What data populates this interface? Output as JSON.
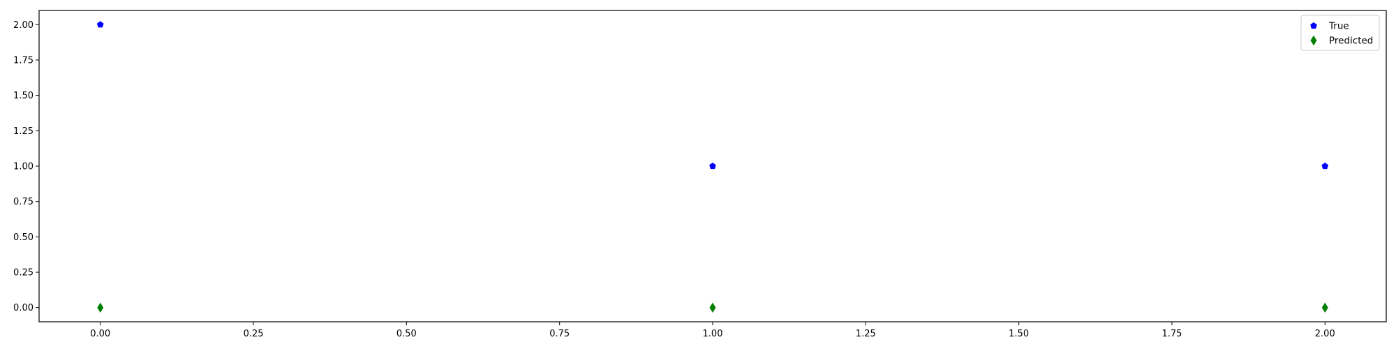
{
  "chart_data": {
    "type": "scatter",
    "title": "",
    "xlabel": "",
    "ylabel": "",
    "xlim": [
      -0.1,
      2.1
    ],
    "ylim": [
      -0.1,
      2.1
    ],
    "x_ticks": [
      0.0,
      0.25,
      0.5,
      0.75,
      1.0,
      1.25,
      1.5,
      1.75,
      2.0
    ],
    "x_tick_labels": [
      "0.00",
      "0.25",
      "0.50",
      "0.75",
      "1.00",
      "1.25",
      "1.50",
      "1.75",
      "2.00"
    ],
    "y_ticks": [
      0.0,
      0.25,
      0.5,
      0.75,
      1.0,
      1.25,
      1.5,
      1.75,
      2.0
    ],
    "y_tick_labels": [
      "0.00",
      "0.25",
      "0.50",
      "0.75",
      "1.00",
      "1.25",
      "1.50",
      "1.75",
      "2.00"
    ],
    "grid": false,
    "legend_position": "top-right",
    "series": [
      {
        "name": "True",
        "marker": "pentagon",
        "color": "#0000ff",
        "x": [
          0,
          1,
          2
        ],
        "y": [
          2,
          1,
          1
        ]
      },
      {
        "name": "Predicted",
        "marker": "thin-diamond",
        "color": "#008000",
        "x": [
          0,
          1,
          2
        ],
        "y": [
          0,
          0,
          0
        ]
      }
    ]
  }
}
